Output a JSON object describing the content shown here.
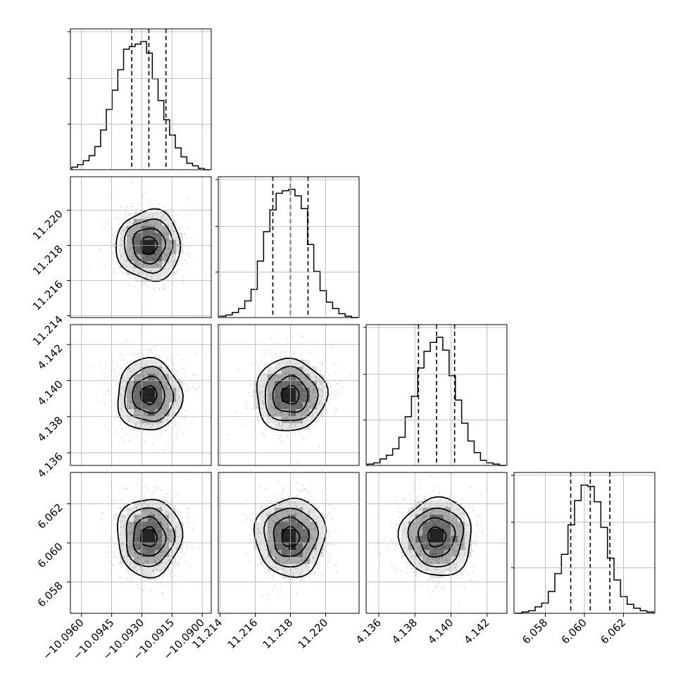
{
  "chart_data": {
    "type": "corner",
    "parameters": 4,
    "grid": true,
    "histogram_style": "step",
    "quantile_line_style": "dashed",
    "colors": {
      "line": "#000000",
      "grid": "#b0b0b0",
      "points": "#888888",
      "density": "#000000"
    },
    "axes": [
      {
        "range": [
          -10.09655,
          -10.08955
        ],
        "ticks": [
          -10.096,
          -10.0945,
          -10.093,
          -10.0915,
          -10.09
        ],
        "tick_labels": [
          "−10.0960",
          "−10.0945",
          "−10.0930",
          "−10.0915",
          "−10.0900"
        ],
        "mean": -10.09265,
        "sigma": 0.0008,
        "quantiles": [
          -10.0935,
          -10.09265,
          -10.0918
        ]
      },
      {
        "range": [
          11.2139,
          11.2219
        ],
        "ticks": [
          11.214,
          11.216,
          11.218,
          11.22
        ],
        "tick_labels": [
          "11.214",
          "11.216",
          "11.218",
          "11.220"
        ],
        "mean": 11.218,
        "sigma": 0.001,
        "quantiles": [
          11.217,
          11.218,
          11.219
        ]
      },
      {
        "range": [
          4.1353,
          4.1431
        ],
        "ticks": [
          4.136,
          4.138,
          4.14,
          4.142
        ],
        "tick_labels": [
          "4.136",
          "4.138",
          "4.140",
          "4.142"
        ],
        "mean": 4.1392,
        "sigma": 0.001,
        "quantiles": [
          4.1382,
          4.1392,
          4.1402
        ]
      },
      {
        "range": [
          6.0564,
          6.0636
        ],
        "ticks": [
          6.058,
          6.06,
          6.062
        ],
        "tick_labels": [
          "6.058",
          "6.060",
          "6.062"
        ],
        "mean": 6.0603,
        "sigma": 0.001,
        "quantiles": [
          6.0593,
          6.0603,
          6.0613
        ]
      }
    ],
    "histograms": [
      [
        0.02,
        0.04,
        0.07,
        0.11,
        0.18,
        0.31,
        0.47,
        0.62,
        0.78,
        0.94,
        0.96,
        0.98,
        1.0,
        0.91,
        0.71,
        0.54,
        0.39,
        0.27,
        0.17,
        0.1,
        0.05,
        0.03,
        0.01,
        0.0
      ],
      [
        0.01,
        0.02,
        0.04,
        0.07,
        0.13,
        0.22,
        0.44,
        0.67,
        0.84,
        0.97,
        0.99,
        1.0,
        0.95,
        0.85,
        0.57,
        0.36,
        0.21,
        0.12,
        0.07,
        0.03,
        0.01,
        0.0
      ],
      [
        0.01,
        0.02,
        0.05,
        0.08,
        0.13,
        0.22,
        0.38,
        0.54,
        0.76,
        0.89,
        0.96,
        1.0,
        0.9,
        0.7,
        0.51,
        0.33,
        0.19,
        0.1,
        0.04,
        0.02,
        0.01,
        0.0
      ],
      [
        0.0,
        0.01,
        0.02,
        0.05,
        0.08,
        0.17,
        0.31,
        0.46,
        0.69,
        0.88,
        1.0,
        0.99,
        0.87,
        0.67,
        0.43,
        0.26,
        0.13,
        0.07,
        0.04,
        0.02,
        0.01
      ]
    ],
    "contour_levels_sigma": [
      0.5,
      1.0,
      1.5,
      2.0
    ]
  }
}
